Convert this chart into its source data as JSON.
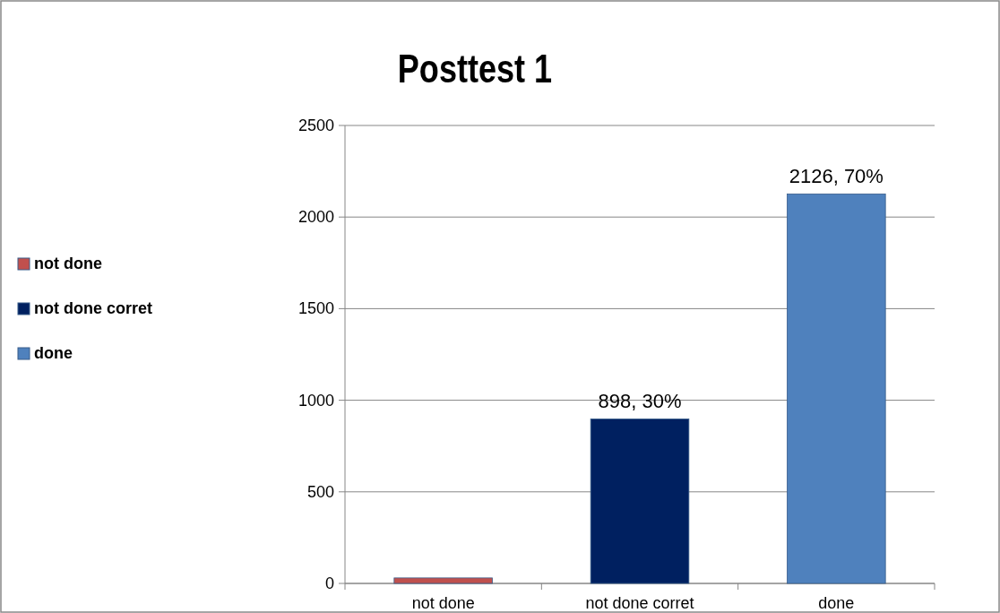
{
  "chart_data": {
    "type": "bar",
    "title": "Posttest 1",
    "categories": [
      "not done",
      "not done corret",
      "done"
    ],
    "series": [
      {
        "name": "not done",
        "color": "#c0504d",
        "values": [
          30,
          null,
          null
        ],
        "value_labels": [
          null,
          null,
          null
        ]
      },
      {
        "name": "not done corret",
        "color": "#002060",
        "values": [
          null,
          898,
          null
        ],
        "value_labels": [
          null,
          "898, 30%",
          null
        ]
      },
      {
        "name": "done",
        "color": "#4f81bd",
        "values": [
          null,
          null,
          2126
        ],
        "value_labels": [
          null,
          null,
          "2126, 70%"
        ]
      }
    ],
    "ylim": [
      0,
      2500
    ],
    "yticks": [
      0,
      500,
      1000,
      1500,
      2000,
      2500
    ],
    "grid": "y",
    "legend": "left"
  }
}
